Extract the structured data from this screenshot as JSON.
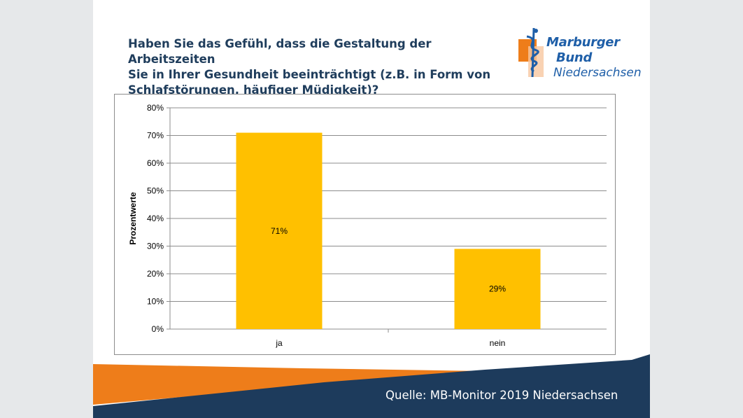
{
  "title_lines": [
    "Haben Sie das Gefühl, dass die Gestaltung der Arbeitszeiten",
    "Sie in Ihrer Gesundheit beeinträchtigt (z.B. in Form von",
    "Schlafstörungen, häufiger Müdigkeit)?"
  ],
  "logo": {
    "line1": "Marburger",
    "line2": "Bund",
    "line3": "Niedersachsen"
  },
  "source": "Quelle: MB-Monitor 2019 Niedersachsen",
  "colors": {
    "bar": "#ffc000",
    "title": "#1f3d5c",
    "logo_blue": "#1f5fa8",
    "logo_orange": "#ee7d1a",
    "footer_navy": "#1d3b5c",
    "footer_orange": "#ee7d1a"
  },
  "chart_data": {
    "type": "bar",
    "categories": [
      "ja",
      "nein"
    ],
    "values": [
      71,
      29
    ],
    "data_labels": [
      "71%",
      "29%"
    ],
    "ylabel": "Prozentwerte",
    "xlabel": "",
    "ylim": [
      0,
      80
    ],
    "ytick_labels": [
      "0%",
      "10%",
      "20%",
      "30%",
      "40%",
      "50%",
      "60%",
      "70%",
      "80%"
    ],
    "grid": true
  }
}
